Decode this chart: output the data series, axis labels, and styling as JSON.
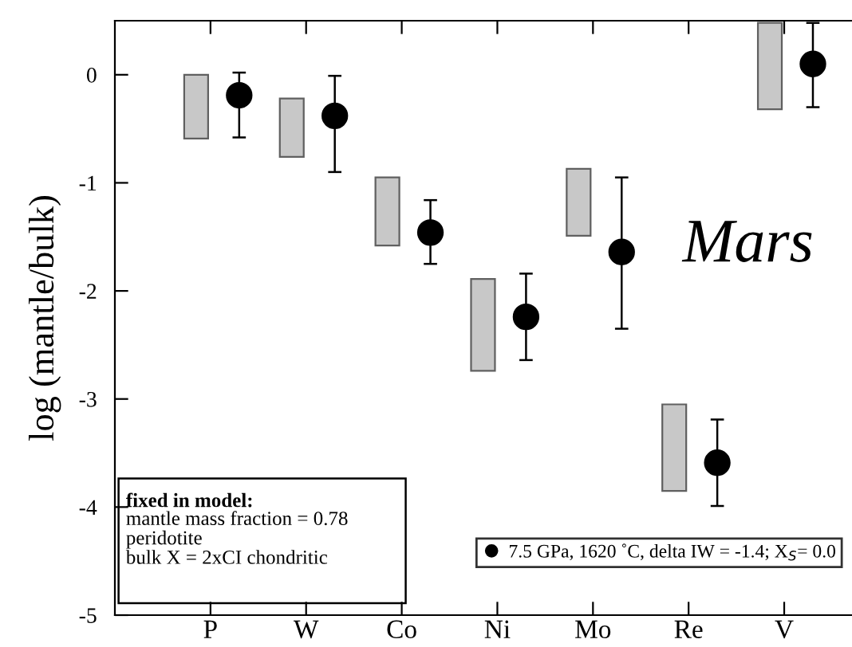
{
  "chart_data": {
    "type": "bar",
    "ylabel": "log (mantle/bulk)",
    "categories": [
      "P",
      "W",
      "Co",
      "Ni",
      "Mo",
      "Re",
      "V"
    ],
    "series": [
      {
        "type": "bar",
        "color": "#c8c8c8",
        "base": [
          -0.59,
          -0.76,
          -1.58,
          -2.74,
          -1.49,
          -3.85,
          -0.32
        ],
        "values": [
          0.59,
          0.54,
          0.63,
          0.85,
          0.62,
          0.8,
          0.8
        ]
      },
      {
        "type": "scatter",
        "name": "7.5 GPa, 1620 ˚C, delta IW = -1.4; X$_{S}$= 0.0",
        "color": "#000000",
        "marker": "circle",
        "values": [
          -0.19,
          -0.38,
          -1.46,
          -2.24,
          -1.64,
          -3.59,
          0.1
        ],
        "errors": [
          [
            -0.58,
            0.02
          ],
          [
            -0.9,
            -0.01
          ],
          [
            -1.75,
            -1.16
          ],
          [
            -2.64,
            -1.84
          ],
          [
            -2.35,
            -0.95
          ],
          [
            -3.99,
            -3.19
          ],
          [
            -0.3,
            0.48
          ]
        ]
      }
    ],
    "ylim": [
      -5,
      0.5
    ],
    "yticks": [
      -5,
      -4,
      -3,
      -2,
      -1,
      0
    ],
    "grid": false,
    "legend": "bottom right",
    "annotations": [
      "Mars",
      "fixed in model:",
      "mantle mass fraction = 0.78\nperidotite\nbulk X = 2xCI chondritic"
    ]
  }
}
